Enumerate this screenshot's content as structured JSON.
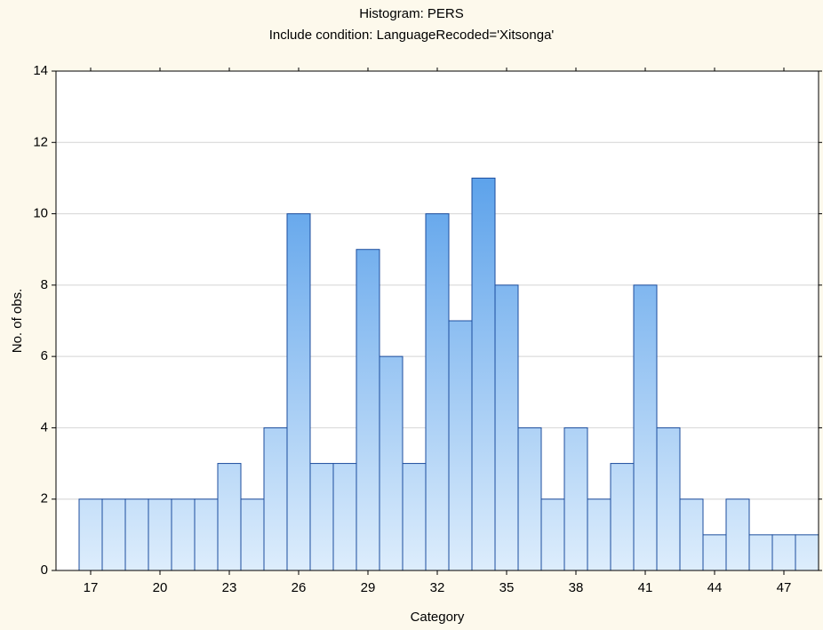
{
  "chart_data": {
    "type": "histogram",
    "title": "Histogram: PERS",
    "subtitle": "Include condition: LanguageRecoded='Xitsonga'",
    "xlabel": "Category",
    "ylabel": "No. of obs.",
    "bins": [
      16.5,
      17.5,
      18.5,
      19.5,
      20.5,
      21.5,
      22.5,
      23.5,
      24.5,
      25.5,
      26.5,
      27.5,
      28.5,
      29.5,
      30.5,
      31.5,
      32.5,
      33.5,
      34.5,
      35.5,
      36.5,
      37.5,
      38.5,
      39.5,
      40.5,
      41.5,
      42.5,
      43.5,
      44.5,
      45.5,
      46.5,
      47.5,
      48.5
    ],
    "counts": [
      2,
      2,
      2,
      2,
      2,
      2,
      3,
      2,
      4,
      10,
      3,
      3,
      9,
      6,
      3,
      10,
      7,
      11,
      8,
      4,
      2,
      4,
      2,
      3,
      8,
      4,
      2,
      1,
      2,
      1,
      1,
      1
    ],
    "color": "#3a8ee6",
    "edge_color": "#1c4d9e",
    "xlim": [
      15.5,
      48.5
    ],
    "xticks": [
      17,
      20,
      23,
      26,
      29,
      32,
      35,
      38,
      41,
      44,
      47
    ],
    "ylim": [
      0,
      14
    ],
    "yticks": [
      0,
      2,
      4,
      6,
      8,
      10,
      12,
      14
    ],
    "grid": true
  }
}
